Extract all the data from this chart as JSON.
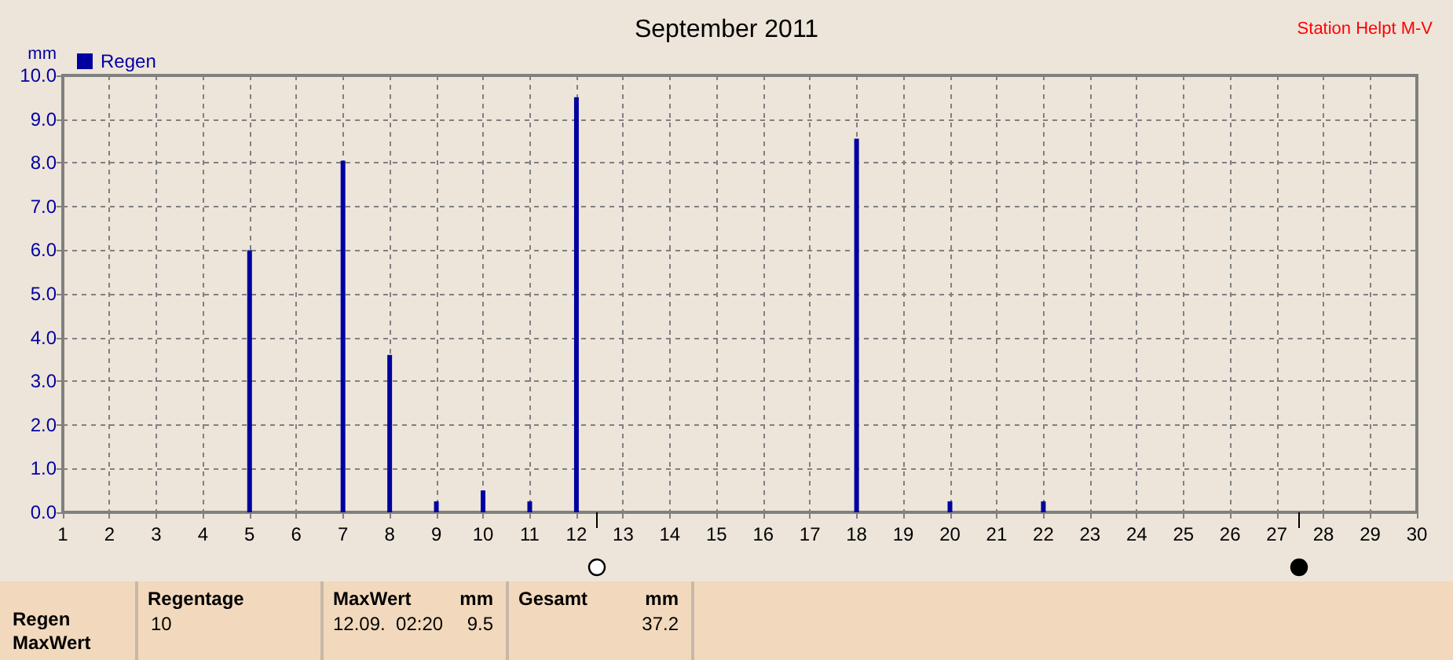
{
  "chart_data": {
    "type": "bar",
    "title": "September 2011",
    "subtitle": "Station Helpt M-V",
    "ylabel": "mm",
    "x": [
      5,
      7,
      8,
      9,
      10,
      11,
      12,
      18,
      20,
      22
    ],
    "series": [
      {
        "name": "Regen",
        "color": "#0000a0",
        "values": [
          6.0,
          8.05,
          3.6,
          0.25,
          0.5,
          0.25,
          9.5,
          8.55,
          0.25,
          0.25
        ]
      }
    ],
    "xlim": [
      1,
      30
    ],
    "xticks": [
      1,
      2,
      3,
      4,
      5,
      6,
      7,
      8,
      9,
      10,
      11,
      12,
      13,
      14,
      15,
      16,
      17,
      18,
      19,
      20,
      21,
      22,
      23,
      24,
      25,
      26,
      27,
      28,
      29,
      30
    ],
    "ylim": [
      0,
      10
    ],
    "yticks": [
      {
        "value": 0,
        "label": "0.0"
      },
      {
        "value": 1,
        "label": "1.0"
      },
      {
        "value": 2,
        "label": "2.0"
      },
      {
        "value": 3,
        "label": "3.0"
      },
      {
        "value": 4,
        "label": "4.0"
      },
      {
        "value": 5,
        "label": "5.0"
      },
      {
        "value": 6,
        "label": "6.0"
      },
      {
        "value": 7,
        "label": "7.0"
      },
      {
        "value": 8,
        "label": "8.0"
      },
      {
        "value": 9,
        "label": "9.0"
      },
      {
        "value": 10,
        "label": "10.0"
      }
    ],
    "grid": true,
    "legend": "top left",
    "annotations": [
      "Regen",
      "MaxWert",
      "Regentage",
      "10",
      "MaxWert",
      "mm",
      "12.09.  02:20",
      "9.5",
      "Gesamt",
      "mm",
      "37.2"
    ]
  }
}
